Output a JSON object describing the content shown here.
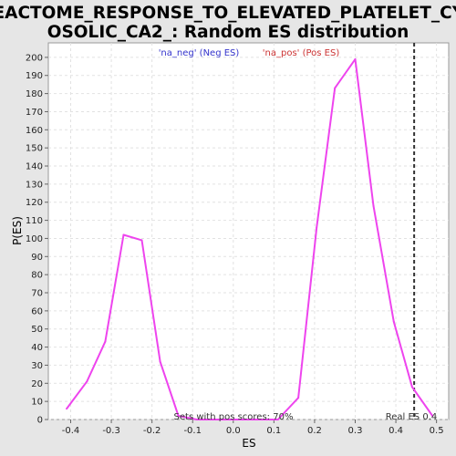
{
  "chart_data": {
    "type": "line",
    "title_lines": [
      "REACTOME_RESPONSE_TO_ELEVATED_PLATELET_CYT",
      "OSOLIC_CA2_: Random ES distribution"
    ],
    "xlabel": "ES",
    "ylabel": "P(ES)",
    "xlim": [
      -0.455,
      0.53
    ],
    "ylim": [
      0,
      208
    ],
    "x_ticks": [
      -0.4,
      -0.3,
      -0.2,
      -0.1,
      0.0,
      0.1,
      0.2,
      0.3,
      0.4,
      0.5
    ],
    "x_tick_labels": [
      "-0.4",
      "-0.3",
      "-0.2",
      "-0.1",
      "0.0",
      "0.1",
      "0.2",
      "0.3",
      "0.4",
      "0.5"
    ],
    "y_ticks": [
      0,
      10,
      20,
      30,
      40,
      50,
      60,
      70,
      80,
      90,
      100,
      110,
      120,
      130,
      140,
      150,
      160,
      170,
      180,
      190,
      200
    ],
    "y_tick_labels": [
      "0",
      "10",
      "20",
      "30",
      "40",
      "50",
      "60",
      "70",
      "80",
      "90",
      "100",
      "110",
      "120",
      "130",
      "140",
      "150",
      "160",
      "170",
      "180",
      "190",
      "200"
    ],
    "grid": true,
    "series": [
      {
        "name": "distribution",
        "color": "#ee44ee",
        "points": [
          [
            -0.41,
            6
          ],
          [
            -0.36,
            21
          ],
          [
            -0.315,
            43
          ],
          [
            -0.27,
            102
          ],
          [
            -0.225,
            99
          ],
          [
            -0.18,
            32
          ],
          [
            -0.135,
            2
          ],
          [
            -0.09,
            0
          ],
          [
            -0.045,
            0
          ],
          [
            0.0,
            0
          ],
          [
            0.06,
            0
          ],
          [
            0.11,
            0
          ],
          [
            0.16,
            12
          ],
          [
            0.205,
            106
          ],
          [
            0.25,
            183
          ],
          [
            0.3,
            199
          ],
          [
            0.345,
            118
          ],
          [
            0.395,
            54
          ],
          [
            0.44,
            18
          ],
          [
            0.49,
            2
          ]
        ]
      }
    ],
    "legend": [
      {
        "label": "'na_neg' (Neg ES)",
        "color": "#3333cc"
      },
      {
        "label": "'na_pos' (Pos ES)",
        "color": "#cc3333"
      }
    ],
    "legend_placement": "top-center",
    "real_es": {
      "value": 0.445,
      "label": "Real ES 0.4",
      "color": "#333333"
    },
    "annotation": "Sets with pos scores: 70%"
  }
}
